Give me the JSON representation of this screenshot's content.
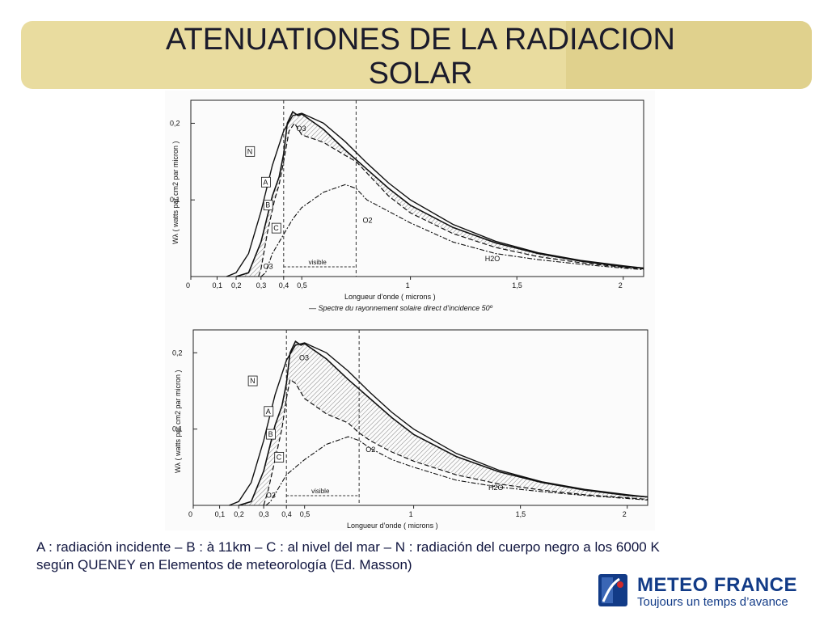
{
  "slide": {
    "title_line1": "ATENUATIONES DE LA RADIACION",
    "title_line2": "SOLAR",
    "caption_line1": "A : radiación  incidente – B : à 11km – C : al nivel del mar – N : radiación del cuerpo negro a los 6000 K",
    "caption_line2": "según QUENEY en Elementos de meteorología (Ed. Masson)"
  },
  "logo": {
    "name": "METEO FRANCE",
    "tagline": "Toujours un temps d’avance",
    "colors": {
      "blue": "#123b87",
      "red": "#d02a2a"
    }
  },
  "chart_data": [
    {
      "type": "line",
      "title": "",
      "ylabel": "Wλ  ( watts par cm2  par micron )",
      "xlabel": "Longueur d’onde    ( microns )",
      "footnote": "— Spectre du rayonnement solaire direct d’incidence 50º",
      "xlim": [
        0,
        2.1
      ],
      "ylim": [
        0,
        0.23
      ],
      "x_ticks": [
        "0",
        "0,1",
        "0,2",
        "0,3",
        "0,4",
        "0,5",
        "1",
        "1,5",
        "2"
      ],
      "x_tick_values": [
        0,
        0.1,
        0.2,
        0.3,
        0.4,
        0.5,
        1,
        1.5,
        2
      ],
      "y_ticks": [
        "0,1",
        "0,2"
      ],
      "y_tick_values": [
        0.1,
        0.2
      ],
      "visible_band": {
        "label": "visible",
        "range": [
          0.4,
          0.75
        ]
      },
      "labels": [
        "N",
        "A",
        "B",
        "C",
        "O3",
        "O3",
        "O2",
        "H2O"
      ],
      "series": [
        {
          "name": "N",
          "x": [
            0.15,
            0.2,
            0.25,
            0.3,
            0.35,
            0.4,
            0.45,
            0.5,
            0.6,
            0.7,
            0.8,
            0.9,
            1.0,
            1.2,
            1.4,
            1.6,
            1.8,
            2.0,
            2.1
          ],
          "y": [
            0.0,
            0.005,
            0.03,
            0.085,
            0.145,
            0.19,
            0.21,
            0.213,
            0.2,
            0.176,
            0.148,
            0.122,
            0.1,
            0.068,
            0.046,
            0.031,
            0.021,
            0.014,
            0.011
          ]
        },
        {
          "name": "A",
          "x": [
            0.2,
            0.25,
            0.3,
            0.35,
            0.38,
            0.4,
            0.42,
            0.45,
            0.48,
            0.5,
            0.6,
            0.7,
            0.8,
            0.9,
            1.0,
            1.2,
            1.4,
            1.6,
            1.8,
            2.0,
            2.1
          ],
          "y": [
            0.0,
            0.005,
            0.045,
            0.105,
            0.13,
            0.16,
            0.2,
            0.215,
            0.21,
            0.212,
            0.192,
            0.165,
            0.14,
            0.115,
            0.093,
            0.064,
            0.044,
            0.03,
            0.02,
            0.013,
            0.011
          ]
        },
        {
          "name": "B",
          "x": [
            0.29,
            0.3,
            0.33,
            0.36,
            0.38,
            0.4,
            0.43,
            0.46,
            0.5,
            0.6,
            0.7,
            0.75,
            0.8,
            0.9,
            1.0,
            1.2,
            1.4,
            1.6,
            1.8,
            2.0,
            2.1
          ],
          "y": [
            0.0,
            0.01,
            0.06,
            0.1,
            0.12,
            0.15,
            0.19,
            0.2,
            0.185,
            0.175,
            0.158,
            0.15,
            0.135,
            0.105,
            0.083,
            0.056,
            0.038,
            0.026,
            0.018,
            0.012,
            0.01
          ]
        },
        {
          "name": "C",
          "x": [
            0.3,
            0.32,
            0.35,
            0.4,
            0.45,
            0.5,
            0.55,
            0.6,
            0.7,
            0.75,
            0.8,
            0.9,
            1.0,
            1.2,
            1.4,
            1.6,
            1.8,
            2.0,
            2.1
          ],
          "y": [
            0.0,
            0.005,
            0.03,
            0.055,
            0.075,
            0.09,
            0.1,
            0.11,
            0.12,
            0.115,
            0.1,
            0.085,
            0.07,
            0.045,
            0.03,
            0.022,
            0.016,
            0.011,
            0.009
          ]
        }
      ]
    },
    {
      "type": "line",
      "title": "",
      "ylabel": "Wλ  ( watts par cm2  par micron )",
      "xlabel": "Longueur d’onde    ( microns )",
      "xlim": [
        0,
        2.1
      ],
      "ylim": [
        0,
        0.23
      ],
      "x_ticks": [
        "0",
        "0,1",
        "0,2",
        "0,3",
        "0,4",
        "0,5",
        "1",
        "1,5",
        "2"
      ],
      "x_tick_values": [
        0,
        0.1,
        0.2,
        0.3,
        0.4,
        0.5,
        1,
        1.5,
        2
      ],
      "y_ticks": [
        "0,1",
        "0,2"
      ],
      "y_tick_values": [
        0.1,
        0.2
      ],
      "visible_band": {
        "label": "visible",
        "range": [
          0.4,
          0.75
        ]
      },
      "labels": [
        "N",
        "A",
        "B",
        "C",
        "O3",
        "O3",
        "O2",
        "H2O"
      ],
      "series": [
        {
          "name": "N",
          "x": [
            0.15,
            0.2,
            0.25,
            0.3,
            0.35,
            0.4,
            0.45,
            0.5,
            0.6,
            0.7,
            0.8,
            0.9,
            1.0,
            1.2,
            1.4,
            1.6,
            1.8,
            2.0,
            2.1
          ],
          "y": [
            0.0,
            0.005,
            0.03,
            0.085,
            0.145,
            0.19,
            0.21,
            0.213,
            0.2,
            0.176,
            0.148,
            0.122,
            0.1,
            0.068,
            0.046,
            0.031,
            0.021,
            0.014,
            0.011
          ]
        },
        {
          "name": "A",
          "x": [
            0.2,
            0.25,
            0.3,
            0.35,
            0.38,
            0.4,
            0.42,
            0.45,
            0.48,
            0.5,
            0.6,
            0.7,
            0.8,
            0.9,
            1.0,
            1.2,
            1.4,
            1.6,
            1.8,
            2.0,
            2.1
          ],
          "y": [
            0.0,
            0.005,
            0.045,
            0.105,
            0.13,
            0.16,
            0.2,
            0.215,
            0.21,
            0.212,
            0.192,
            0.165,
            0.14,
            0.115,
            0.093,
            0.064,
            0.044,
            0.03,
            0.02,
            0.013,
            0.011
          ]
        },
        {
          "name": "B",
          "x": [
            0.3,
            0.32,
            0.35,
            0.38,
            0.4,
            0.42,
            0.45,
            0.5,
            0.55,
            0.6,
            0.7,
            0.75,
            0.8,
            0.9,
            1.0,
            1.2,
            1.4,
            1.6,
            1.8,
            2.0,
            2.1
          ],
          "y": [
            0.0,
            0.02,
            0.06,
            0.1,
            0.14,
            0.165,
            0.16,
            0.14,
            0.13,
            0.12,
            0.108,
            0.095,
            0.085,
            0.07,
            0.058,
            0.04,
            0.028,
            0.02,
            0.014,
            0.01,
            0.008
          ]
        },
        {
          "name": "C",
          "x": [
            0.31,
            0.33,
            0.36,
            0.4,
            0.45,
            0.5,
            0.55,
            0.6,
            0.7,
            0.75,
            0.8,
            0.9,
            1.0,
            1.2,
            1.4,
            1.6,
            1.8,
            2.0,
            2.1
          ],
          "y": [
            0.0,
            0.005,
            0.02,
            0.04,
            0.05,
            0.06,
            0.07,
            0.08,
            0.09,
            0.085,
            0.075,
            0.06,
            0.05,
            0.033,
            0.024,
            0.018,
            0.013,
            0.009,
            0.007
          ]
        }
      ]
    }
  ]
}
